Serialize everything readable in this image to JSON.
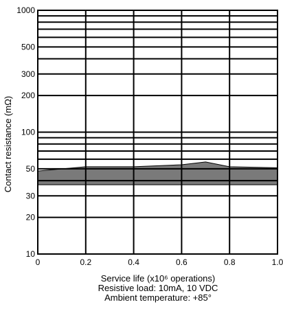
{
  "chart_data": {
    "type": "area",
    "ylabel": "Contact resistance (mΩ)",
    "xlabel": "Service life (x10⁶ operations)",
    "notes": [
      "Resistive load: 10mA, 10 VDC",
      "Ambient temperature: +85°"
    ],
    "xlim": [
      0,
      1.0
    ],
    "ylim": [
      10,
      1000
    ],
    "y_scale": "log",
    "grid": true,
    "x_ticks": [
      "0",
      "0.2",
      "0.4",
      "0.6",
      "0.8",
      "1.0"
    ],
    "x_tick_values": [
      0,
      0.2,
      0.4,
      0.6,
      0.8,
      1.0
    ],
    "y_ticks": [
      "10",
      "20",
      "30",
      "50",
      "100",
      "200",
      "300",
      "500",
      "1000"
    ],
    "y_tick_values": [
      10,
      20,
      30,
      50,
      100,
      200,
      300,
      500,
      1000
    ],
    "y_minor_gridlines": [
      40,
      60,
      70,
      80,
      90,
      400,
      600,
      700,
      800,
      900
    ],
    "fill_color": "#7a7a7a",
    "series": [
      {
        "upper": [
          {
            "x": 0.0,
            "y": 48
          },
          {
            "x": 0.2,
            "y": 52
          },
          {
            "x": 0.4,
            "y": 52
          },
          {
            "x": 0.6,
            "y": 54
          },
          {
            "x": 0.7,
            "y": 57
          },
          {
            "x": 0.8,
            "y": 52
          },
          {
            "x": 1.0,
            "y": 51
          }
        ],
        "lower": [
          {
            "x": 0.0,
            "y": 37
          },
          {
            "x": 1.0,
            "y": 37
          }
        ]
      }
    ]
  }
}
